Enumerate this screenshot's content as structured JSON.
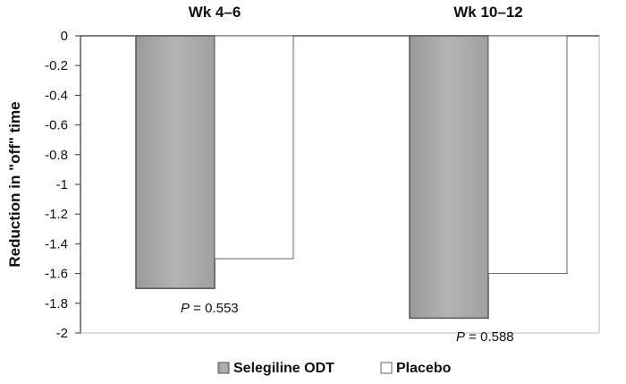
{
  "chart_data": {
    "type": "bar",
    "categories": [
      "Wk 4–6",
      "Wk 10–12"
    ],
    "series": [
      {
        "name": "Selegiline ODT",
        "values": [
          -1.7,
          -1.9
        ],
        "color": "#a8a8a8"
      },
      {
        "name": "Placebo",
        "values": [
          -1.5,
          -1.6
        ],
        "color": "#ffffff"
      }
    ],
    "ylabel": "Reduction in \"off\" time",
    "ylim": [
      -2,
      0
    ],
    "yticks": [
      "0",
      "-0.2",
      "-0.4",
      "-0.6",
      "-0.8",
      "-1",
      "-1.2",
      "-1.4",
      "-1.6",
      "-1.8",
      "-2"
    ],
    "ytick_values": [
      0,
      -0.2,
      -0.4,
      -0.6,
      -0.8,
      -1,
      -1.2,
      -1.4,
      -1.6,
      -1.8,
      -2
    ],
    "annotations": [
      {
        "group": 0,
        "prefix": "P",
        "text": " = 0.553"
      },
      {
        "group": 1,
        "prefix": "P",
        "text": " = 0.588"
      }
    ],
    "legend_position": "bottom",
    "grid": false
  }
}
